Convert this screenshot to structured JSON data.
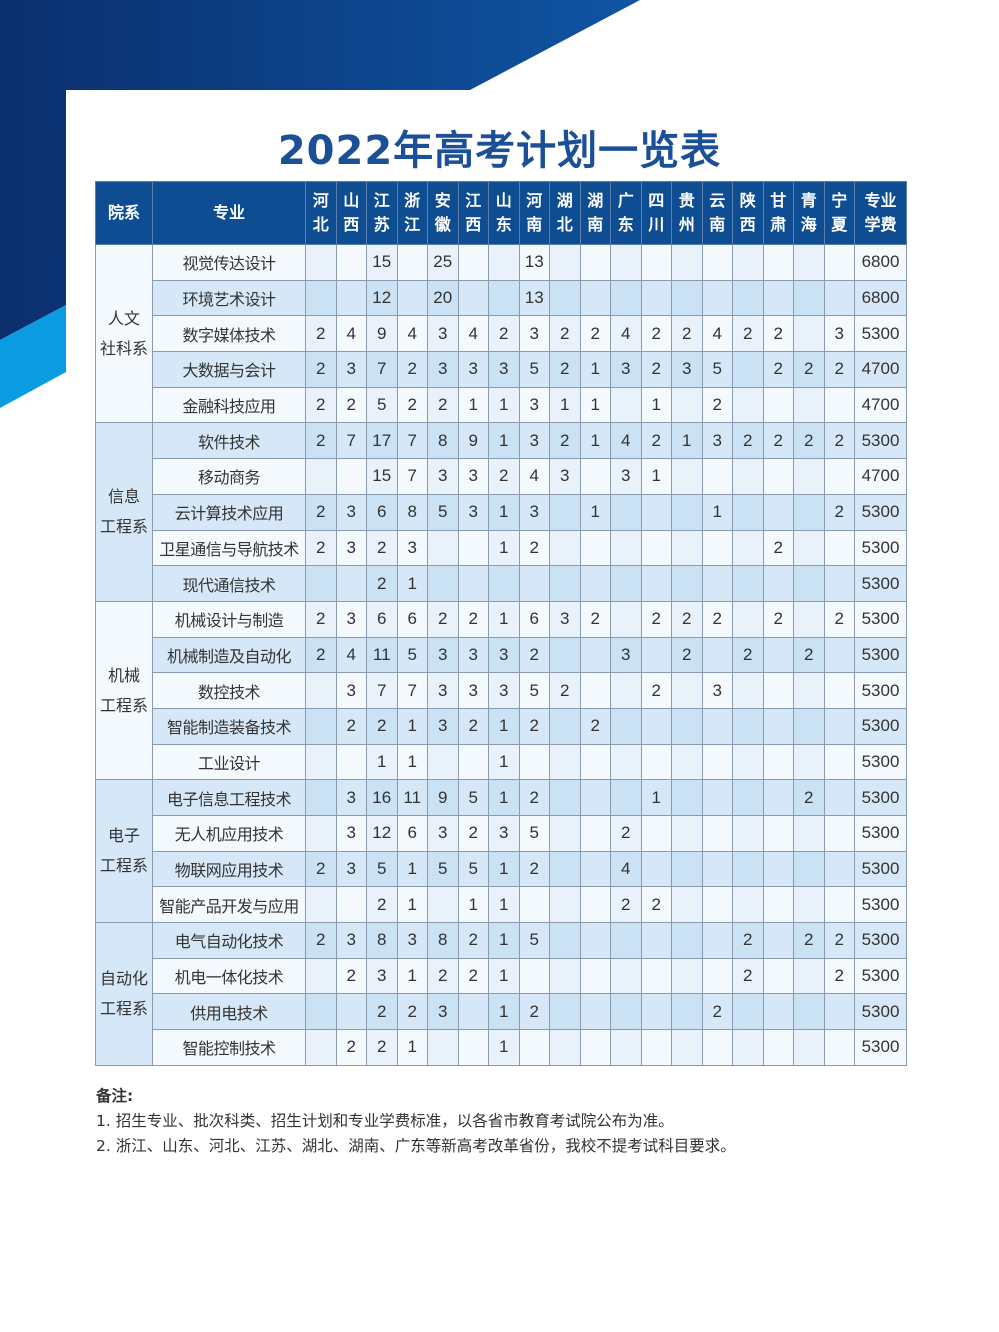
{
  "title": "2022年高考计划一览表",
  "colors": {
    "dark_blue": "#0e4d92",
    "light_blue": "#0a9be0",
    "title": "#1b4f96"
  },
  "headers": {
    "dept": "院系",
    "major": "专业",
    "provinces": [
      [
        "河",
        "北"
      ],
      [
        "山",
        "西"
      ],
      [
        "江",
        "苏"
      ],
      [
        "浙",
        "江"
      ],
      [
        "安",
        "徽"
      ],
      [
        "江",
        "西"
      ],
      [
        "山",
        "东"
      ],
      [
        "河",
        "南"
      ],
      [
        "湖",
        "北"
      ],
      [
        "湖",
        "南"
      ],
      [
        "广",
        "东"
      ],
      [
        "四",
        "川"
      ],
      [
        "贵",
        "州"
      ],
      [
        "云",
        "南"
      ],
      [
        "陕",
        "西"
      ],
      [
        "甘",
        "肃"
      ],
      [
        "青",
        "海"
      ],
      [
        "宁",
        "夏"
      ]
    ],
    "fee": [
      "专业",
      "学费"
    ]
  },
  "departments": [
    {
      "name": [
        "人文",
        "社科系"
      ],
      "majors": [
        {
          "name": "视觉传达设计",
          "counts": [
            "",
            "",
            "15",
            "",
            "25",
            "",
            "",
            "13",
            "",
            "",
            "",
            "",
            "",
            "",
            "",
            "",
            "",
            ""
          ],
          "fee": "6800"
        },
        {
          "name": "环境艺术设计",
          "counts": [
            "",
            "",
            "12",
            "",
            "20",
            "",
            "",
            "13",
            "",
            "",
            "",
            "",
            "",
            "",
            "",
            "",
            "",
            ""
          ],
          "fee": "6800"
        },
        {
          "name": "数字媒体技术",
          "counts": [
            "2",
            "4",
            "9",
            "4",
            "3",
            "4",
            "2",
            "3",
            "2",
            "2",
            "4",
            "2",
            "2",
            "4",
            "2",
            "2",
            "",
            "3"
          ],
          "fee": "5300"
        },
        {
          "name": "大数据与会计",
          "counts": [
            "2",
            "3",
            "7",
            "2",
            "3",
            "3",
            "3",
            "5",
            "2",
            "1",
            "3",
            "2",
            "3",
            "5",
            "",
            "2",
            "2",
            "2"
          ],
          "fee": "4700"
        },
        {
          "name": "金融科技应用",
          "counts": [
            "2",
            "2",
            "5",
            "2",
            "2",
            "1",
            "1",
            "3",
            "1",
            "1",
            "",
            "1",
            "",
            "2",
            "",
            "",
            "",
            ""
          ],
          "fee": "4700"
        }
      ]
    },
    {
      "name": [
        "信息",
        "工程系"
      ],
      "majors": [
        {
          "name": "软件技术",
          "counts": [
            "2",
            "7",
            "17",
            "7",
            "8",
            "9",
            "1",
            "3",
            "2",
            "1",
            "4",
            "2",
            "1",
            "3",
            "2",
            "2",
            "2",
            "2"
          ],
          "fee": "5300"
        },
        {
          "name": "移动商务",
          "counts": [
            "",
            "",
            "15",
            "7",
            "3",
            "3",
            "2",
            "4",
            "3",
            "",
            "3",
            "1",
            "",
            "",
            "",
            "",
            "",
            ""
          ],
          "fee": "4700"
        },
        {
          "name": "云计算技术应用",
          "counts": [
            "2",
            "3",
            "6",
            "8",
            "5",
            "3",
            "1",
            "3",
            "",
            "1",
            "",
            "",
            "",
            "1",
            "",
            "",
            "",
            "2"
          ],
          "fee": "5300"
        },
        {
          "name": "卫星通信与导航技术",
          "counts": [
            "2",
            "3",
            "2",
            "3",
            "",
            "",
            "1",
            "2",
            "",
            "",
            "",
            "",
            "",
            "",
            "",
            "2",
            "",
            ""
          ],
          "fee": "5300"
        },
        {
          "name": "现代通信技术",
          "counts": [
            "",
            "",
            "2",
            "1",
            "",
            "",
            "",
            "",
            "",
            "",
            "",
            "",
            "",
            "",
            "",
            "",
            "",
            ""
          ],
          "fee": "5300"
        }
      ]
    },
    {
      "name": [
        "机械",
        "工程系"
      ],
      "majors": [
        {
          "name": "机械设计与制造",
          "counts": [
            "2",
            "3",
            "6",
            "6",
            "2",
            "2",
            "1",
            "6",
            "3",
            "2",
            "",
            "2",
            "2",
            "2",
            "",
            "2",
            "",
            "2"
          ],
          "fee": "5300"
        },
        {
          "name": "机械制造及自动化",
          "counts": [
            "2",
            "4",
            "11",
            "5",
            "3",
            "3",
            "3",
            "2",
            "",
            "",
            "3",
            "",
            "2",
            "",
            "2",
            "",
            "2",
            ""
          ],
          "fee": "5300"
        },
        {
          "name": "数控技术",
          "counts": [
            "",
            "3",
            "7",
            "7",
            "3",
            "3",
            "3",
            "5",
            "2",
            "",
            "",
            "2",
            "",
            "3",
            "",
            "",
            "",
            ""
          ],
          "fee": "5300"
        },
        {
          "name": "智能制造装备技术",
          "counts": [
            "",
            "2",
            "2",
            "1",
            "3",
            "2",
            "1",
            "2",
            "",
            "2",
            "",
            "",
            "",
            "",
            "",
            "",
            "",
            ""
          ],
          "fee": "5300"
        },
        {
          "name": "工业设计",
          "counts": [
            "",
            "",
            "1",
            "1",
            "",
            "",
            "1",
            "",
            "",
            "",
            "",
            "",
            "",
            "",
            "",
            "",
            "",
            ""
          ],
          "fee": "5300"
        }
      ]
    },
    {
      "name": [
        "电子",
        "工程系"
      ],
      "majors": [
        {
          "name": "电子信息工程技术",
          "counts": [
            "",
            "3",
            "16",
            "11",
            "9",
            "5",
            "1",
            "2",
            "",
            "",
            "",
            "1",
            "",
            "",
            "",
            "",
            "2",
            ""
          ],
          "fee": "5300"
        },
        {
          "name": "无人机应用技术",
          "counts": [
            "",
            "3",
            "12",
            "6",
            "3",
            "2",
            "3",
            "5",
            "",
            "",
            "2",
            "",
            "",
            "",
            "",
            "",
            "",
            ""
          ],
          "fee": "5300"
        },
        {
          "name": "物联网应用技术",
          "counts": [
            "2",
            "3",
            "5",
            "1",
            "5",
            "5",
            "1",
            "2",
            "",
            "",
            "4",
            "",
            "",
            "",
            "",
            "",
            "",
            ""
          ],
          "fee": "5300"
        },
        {
          "name": "智能产品开发与应用",
          "counts": [
            "",
            "",
            "2",
            "1",
            "",
            "1",
            "1",
            "",
            "",
            "",
            "2",
            "2",
            "",
            "",
            "",
            "",
            "",
            ""
          ],
          "fee": "5300"
        }
      ]
    },
    {
      "name": [
        "自动化",
        "工程系"
      ],
      "majors": [
        {
          "name": "电气自动化技术",
          "counts": [
            "2",
            "3",
            "8",
            "3",
            "8",
            "2",
            "1",
            "5",
            "",
            "",
            "",
            "",
            "",
            "",
            "2",
            "",
            "2",
            "2"
          ],
          "fee": "5300"
        },
        {
          "name": "机电一体化技术",
          "counts": [
            "",
            "2",
            "3",
            "1",
            "2",
            "2",
            "1",
            "",
            "",
            "",
            "",
            "",
            "",
            "",
            "2",
            "",
            "",
            "2"
          ],
          "fee": "5300"
        },
        {
          "name": "供用电技术",
          "counts": [
            "",
            "",
            "2",
            "2",
            "3",
            "",
            "1",
            "2",
            "",
            "",
            "",
            "",
            "",
            "2",
            "",
            "",
            "",
            ""
          ],
          "fee": "5300"
        },
        {
          "name": "智能控制技术",
          "counts": [
            "",
            "2",
            "2",
            "1",
            "",
            "",
            "1",
            "",
            "",
            "",
            "",
            "",
            "",
            "",
            "",
            "",
            "",
            ""
          ],
          "fee": "5300"
        }
      ]
    }
  ],
  "notes": {
    "heading": "备注:",
    "items": [
      "1. 招生专业、批次科类、招生计划和专业学费标准，以各省市教育考试院公布为准。",
      "2. 浙江、山东、河北、江苏、湖北、湖南、广东等新高考改革省份，我校不提考试科目要求。"
    ]
  }
}
